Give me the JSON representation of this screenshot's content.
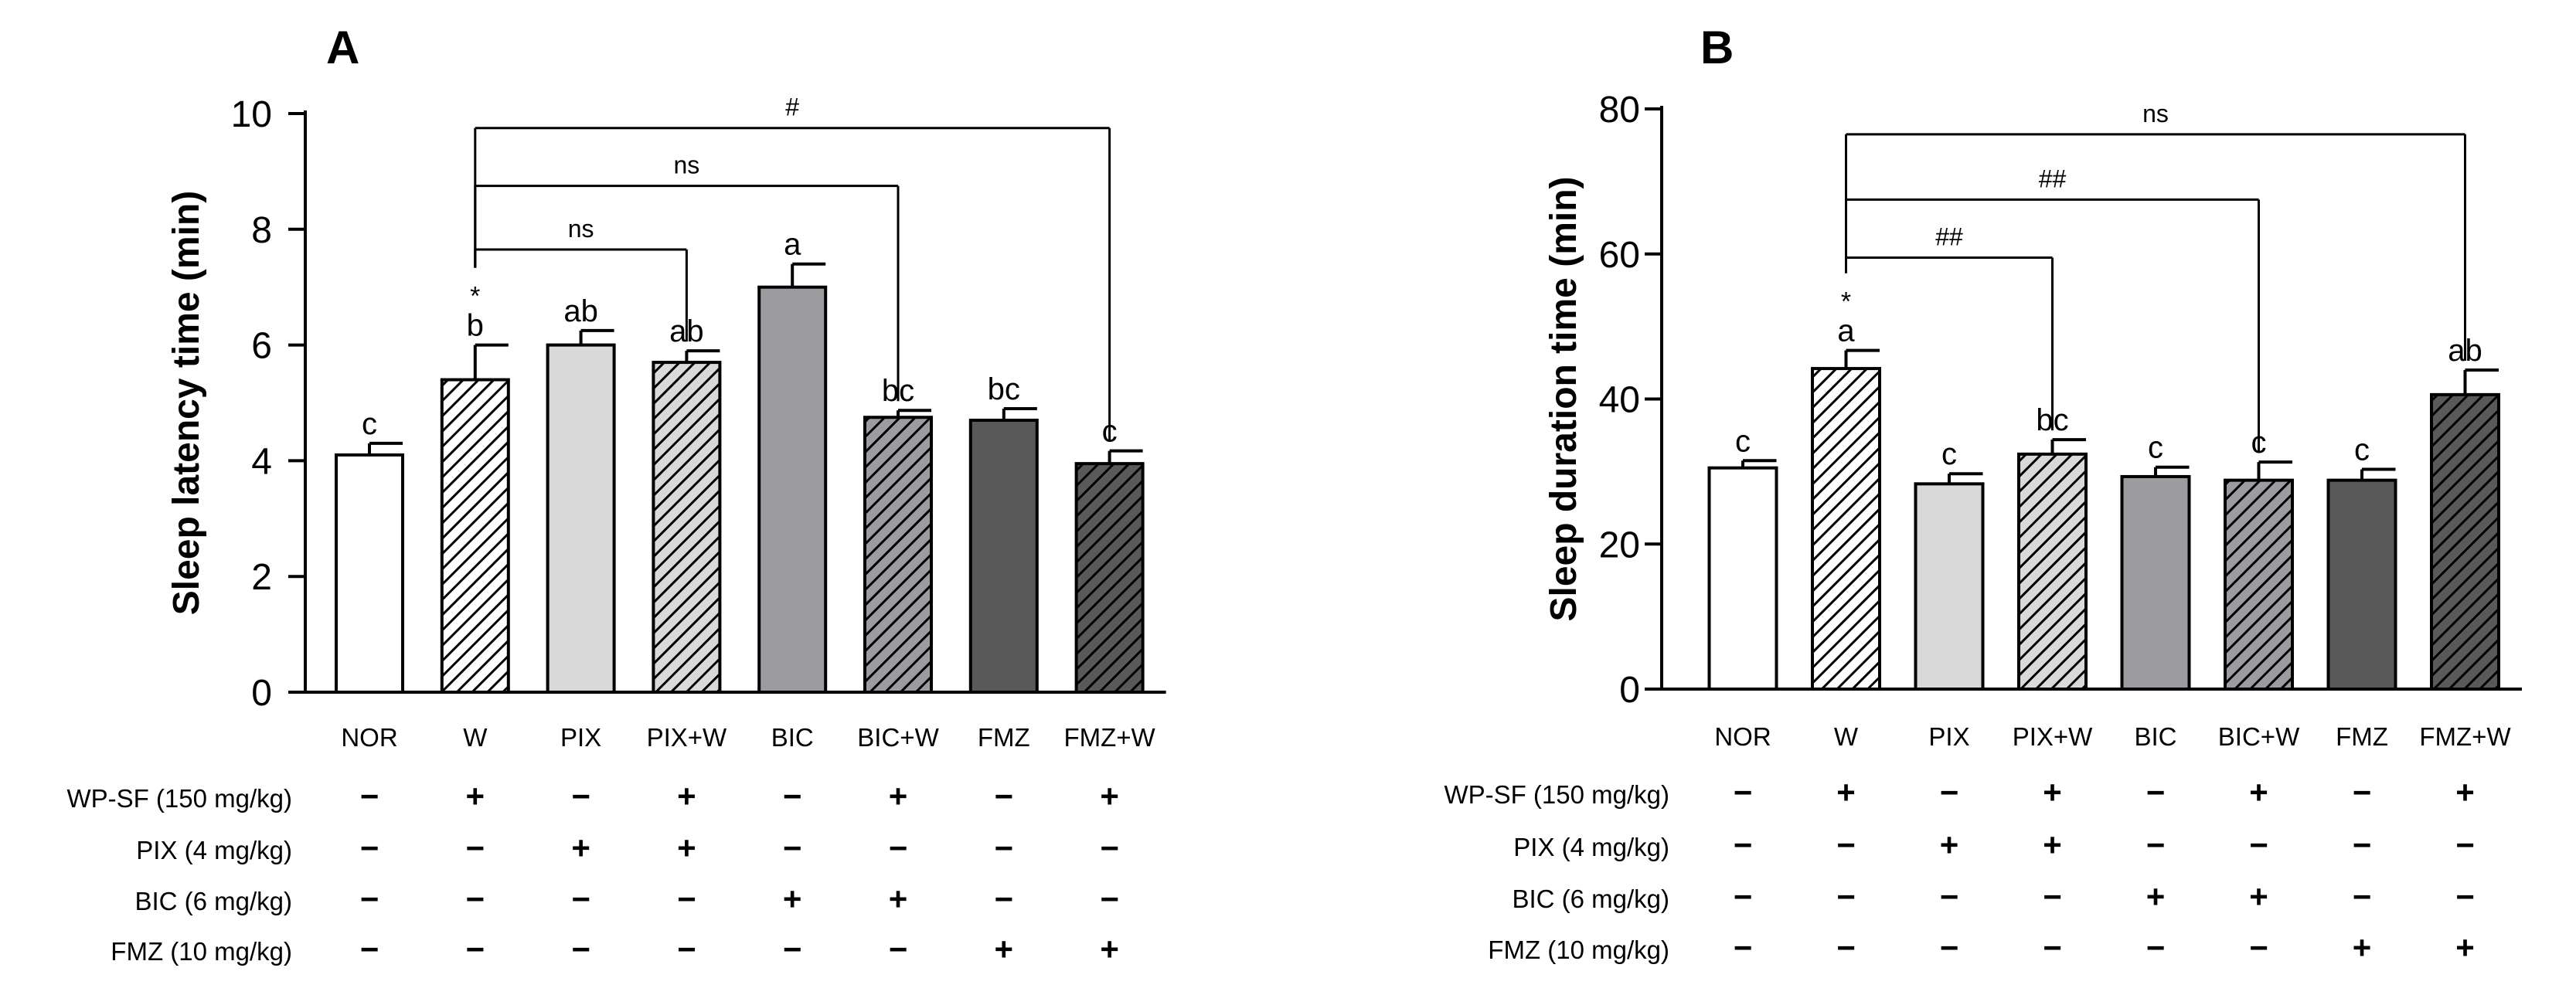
{
  "chart_data": [
    {
      "panel": "A",
      "type": "bar",
      "ylabel": "Sleep  latency time (min)",
      "ylim": [
        0,
        10
      ],
      "yticks": [
        0,
        2,
        4,
        6,
        8,
        10
      ],
      "categories": [
        "NOR",
        "W",
        "PIX",
        "PIX+W",
        "BIC",
        "BIC+W",
        "FMZ",
        "FMZ+W"
      ],
      "values": [
        4.1,
        5.4,
        6.0,
        5.7,
        7.0,
        4.75,
        4.7,
        3.95
      ],
      "errors": [
        0.2,
        0.6,
        0.25,
        0.2,
        0.4,
        0.12,
        0.2,
        0.22
      ],
      "fills": [
        "#ffffff",
        "#ffffff",
        "#d9d9d9",
        "#d9d9d9",
        "#9b9ba0",
        "#9b9ba0",
        "#595959",
        "#595959"
      ],
      "hatched": [
        false,
        true,
        false,
        true,
        false,
        true,
        false,
        true
      ],
      "letters": [
        "c",
        "b",
        "ab",
        "ab",
        "a",
        "bc",
        "bc",
        "c"
      ],
      "star_index": 1,
      "star": "*",
      "brackets": [
        {
          "from": 1,
          "to": 3,
          "label": "ns",
          "level": 7.65
        },
        {
          "from": 1,
          "to": 5,
          "label": "ns",
          "level": 8.75
        },
        {
          "from": 1,
          "to": 7,
          "label": "#",
          "level": 9.75
        }
      ]
    },
    {
      "panel": "B",
      "type": "bar",
      "ylabel": "Sleep  duration time (min)",
      "ylim": [
        0,
        80
      ],
      "yticks": [
        0,
        20,
        40,
        60,
        80
      ],
      "categories": [
        "NOR",
        "W",
        "PIX",
        "PIX+W",
        "BIC",
        "BIC+W",
        "FMZ",
        "FMZ+W"
      ],
      "values": [
        30.5,
        44.2,
        28.3,
        32.4,
        29.3,
        28.8,
        28.8,
        40.6
      ],
      "errors": [
        1.0,
        2.5,
        1.4,
        2.0,
        1.3,
        2.5,
        1.5,
        3.4
      ],
      "fills": [
        "#ffffff",
        "#ffffff",
        "#d9d9d9",
        "#d9d9d9",
        "#9b9ba0",
        "#9b9ba0",
        "#595959",
        "#595959"
      ],
      "hatched": [
        false,
        true,
        false,
        true,
        false,
        true,
        false,
        true
      ],
      "letters": [
        "c",
        "a",
        "c",
        "bc",
        "c",
        "c",
        "c",
        "ab"
      ],
      "star_index": 1,
      "star": "*",
      "brackets": [
        {
          "from": 1,
          "to": 3,
          "label": "##",
          "level": 59.5
        },
        {
          "from": 1,
          "to": 5,
          "label": "##",
          "level": 67.5
        },
        {
          "from": 1,
          "to": 7,
          "label": "ns",
          "level": 76.5
        }
      ]
    }
  ],
  "treatment_table": {
    "rows": [
      {
        "label": "WP-SF (150 mg/kg)",
        "signs": [
          "−",
          "+",
          "−",
          "+",
          "−",
          "+",
          "−",
          "+"
        ]
      },
      {
        "label": "PIX (4 mg/kg)",
        "signs": [
          "−",
          "−",
          "+",
          "+",
          "−",
          "−",
          "−",
          "−"
        ]
      },
      {
        "label": "BIC (6 mg/kg)",
        "signs": [
          "−",
          "−",
          "−",
          "−",
          "+",
          "+",
          "−",
          "−"
        ]
      },
      {
        "label": "FMZ (10 mg/kg)",
        "signs": [
          "−",
          "−",
          "−",
          "−",
          "−",
          "−",
          "+",
          "+"
        ]
      }
    ]
  },
  "colors": {
    "axis": "#000000",
    "bar_outline": "#000000",
    "background": "#ffffff"
  }
}
